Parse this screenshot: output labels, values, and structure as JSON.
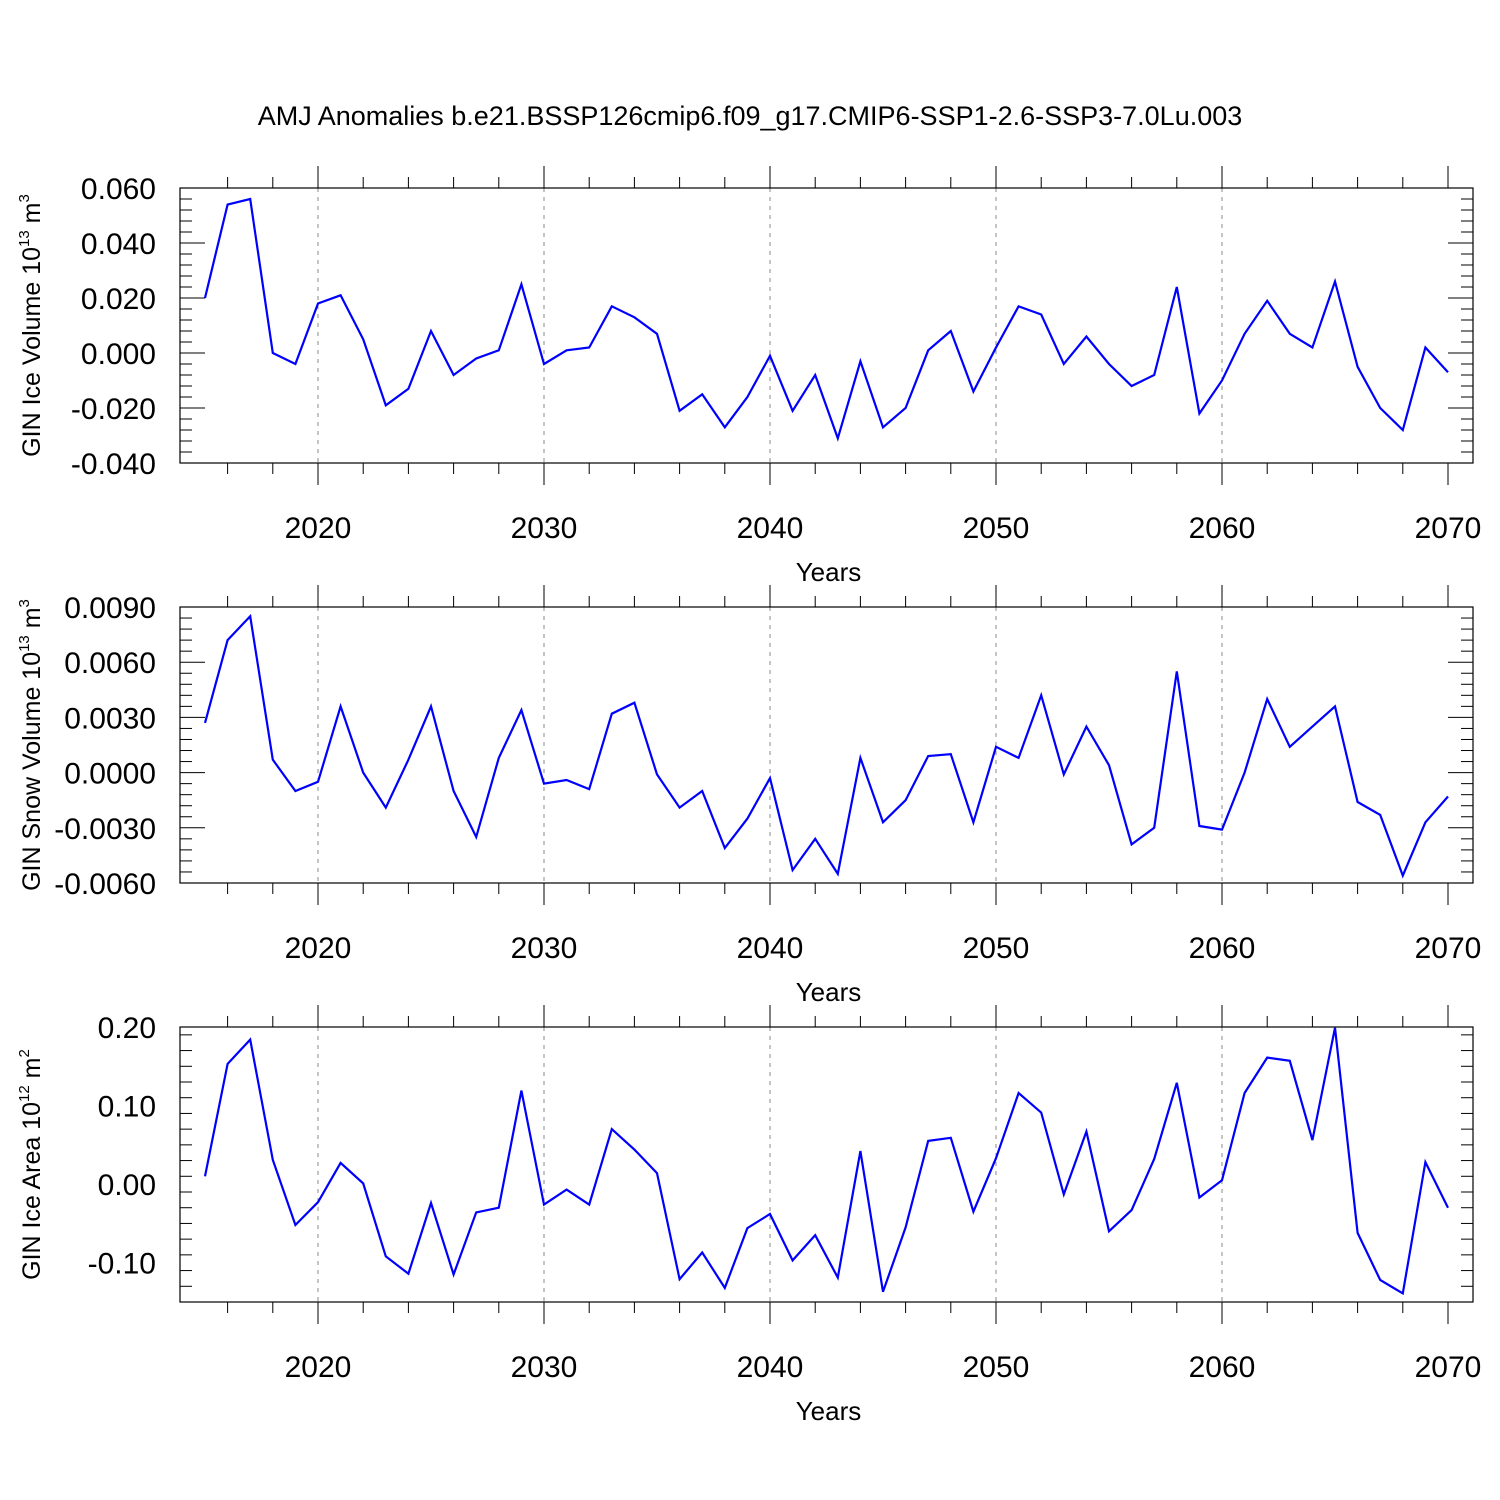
{
  "figure_title": "AMJ Anomalies b.e21.BSSP126cmip6.f09_g17.CMIP6-SSP1-2.6-SSP3-7.0Lu.003",
  "series_color": "#0000ff",
  "grid_color": "#888888",
  "chart_data": [
    {
      "type": "line",
      "title": "",
      "ylabel": {
        "text": "GIN Ice Volume 10",
        "exp": "13",
        "unit": " m",
        "unit_exp": "3"
      },
      "xlabel": "Years",
      "xlim": [
        2015,
        2070
      ],
      "ylim": [
        -0.04,
        0.06
      ],
      "yticks": [
        -0.04,
        -0.02,
        0.0,
        0.02,
        0.04,
        0.06
      ],
      "ytick_labels": [
        "-0.040",
        "-0.020",
        "0.000",
        "0.020",
        "0.040",
        "0.060"
      ],
      "xticks": [
        2020,
        2030,
        2040,
        2050,
        2060,
        2070
      ],
      "xtick_labels": [
        "2020",
        "2030",
        "2040",
        "2050",
        "2060",
        "2070"
      ],
      "grid": "vertical dashed at major x ticks",
      "series": [
        {
          "name": "GIN Ice Volume anomaly",
          "x": [
            2015,
            2016,
            2017,
            2018,
            2019,
            2020,
            2021,
            2022,
            2023,
            2024,
            2025,
            2026,
            2027,
            2028,
            2029,
            2030,
            2031,
            2032,
            2033,
            2034,
            2035,
            2036,
            2037,
            2038,
            2039,
            2040,
            2041,
            2042,
            2043,
            2044,
            2045,
            2046,
            2047,
            2048,
            2049,
            2050,
            2051,
            2052,
            2053,
            2054,
            2055,
            2056,
            2057,
            2058,
            2059,
            2060,
            2061,
            2062,
            2063,
            2064,
            2065,
            2066,
            2067,
            2068,
            2069,
            2070
          ],
          "values": [
            0.02,
            0.054,
            0.056,
            0.0,
            -0.004,
            0.018,
            0.021,
            0.005,
            -0.019,
            -0.013,
            0.008,
            -0.008,
            -0.002,
            0.001,
            0.025,
            -0.004,
            0.001,
            0.002,
            0.017,
            0.013,
            0.007,
            -0.021,
            -0.015,
            -0.027,
            -0.016,
            -0.001,
            -0.021,
            -0.008,
            -0.031,
            -0.003,
            -0.027,
            -0.02,
            0.001,
            0.008,
            -0.014,
            0.002,
            0.017,
            0.014,
            -0.004,
            0.006,
            -0.004,
            -0.012,
            -0.008,
            0.024,
            -0.022,
            -0.01,
            0.007,
            0.019,
            0.007,
            0.002,
            0.026,
            -0.005,
            -0.02,
            -0.028,
            0.002,
            -0.007
          ]
        }
      ]
    },
    {
      "type": "line",
      "title": "",
      "ylabel": {
        "text": "GIN Snow Volume 10",
        "exp": "13",
        "unit": " m",
        "unit_exp": "3"
      },
      "xlabel": "Years",
      "xlim": [
        2015,
        2070
      ],
      "ylim": [
        -0.006,
        0.009
      ],
      "yticks": [
        -0.006,
        -0.003,
        0.0,
        0.003,
        0.006,
        0.009
      ],
      "ytick_labels": [
        "-0.0060",
        "-0.0030",
        "0.0000",
        "0.0030",
        "0.0060",
        "0.0090"
      ],
      "xticks": [
        2020,
        2030,
        2040,
        2050,
        2060,
        2070
      ],
      "xtick_labels": [
        "2020",
        "2030",
        "2040",
        "2050",
        "2060",
        "2070"
      ],
      "grid": "vertical dashed at major x ticks",
      "series": [
        {
          "name": "GIN Snow Volume anomaly",
          "x": [
            2015,
            2016,
            2017,
            2018,
            2019,
            2020,
            2021,
            2022,
            2023,
            2024,
            2025,
            2026,
            2027,
            2028,
            2029,
            2030,
            2031,
            2032,
            2033,
            2034,
            2035,
            2036,
            2037,
            2038,
            2039,
            2040,
            2041,
            2042,
            2043,
            2044,
            2045,
            2046,
            2047,
            2048,
            2049,
            2050,
            2051,
            2052,
            2053,
            2054,
            2055,
            2056,
            2057,
            2058,
            2059,
            2060,
            2061,
            2062,
            2063,
            2064,
            2065,
            2066,
            2067,
            2068,
            2069,
            2070
          ],
          "values": [
            0.0027,
            0.0072,
            0.0085,
            0.0007,
            -0.001,
            -0.0005,
            0.0036,
            0.0,
            -0.0019,
            0.0007,
            0.0036,
            -0.001,
            -0.0035,
            0.0008,
            0.0034,
            -0.0006,
            -0.0004,
            -0.0009,
            0.0032,
            0.0038,
            -0.0001,
            -0.0019,
            -0.001,
            -0.0041,
            -0.0025,
            -0.0003,
            -0.0053,
            -0.0036,
            -0.0055,
            0.0008,
            -0.0027,
            -0.0015,
            0.0009,
            0.001,
            -0.0027,
            0.0014,
            0.0008,
            0.0042,
            -0.0001,
            0.0025,
            0.0004,
            -0.0039,
            -0.003,
            0.0055,
            -0.0029,
            -0.0031,
            0.0,
            0.004,
            0.0014,
            0.0025,
            0.0036,
            -0.0016,
            -0.0023,
            -0.0056,
            -0.0027,
            -0.0013
          ]
        }
      ]
    },
    {
      "type": "line",
      "title": "",
      "ylabel": {
        "text": "GIN Ice Area 10",
        "exp": "12",
        "unit": " m",
        "unit_exp": "2"
      },
      "xlabel": "Years",
      "xlim": [
        2015,
        2070
      ],
      "ylim": [
        -0.15,
        0.2
      ],
      "yticks": [
        -0.1,
        0.0,
        0.1,
        0.2
      ],
      "ytick_labels": [
        "-0.10",
        "0.00",
        "0.10",
        "0.20"
      ],
      "xticks": [
        2020,
        2030,
        2040,
        2050,
        2060,
        2070
      ],
      "xtick_labels": [
        "2020",
        "2030",
        "2040",
        "2050",
        "2060",
        "2070"
      ],
      "grid": "vertical dashed at major x ticks",
      "series": [
        {
          "name": "GIN Ice Area anomaly",
          "x": [
            2015,
            2016,
            2017,
            2018,
            2019,
            2020,
            2021,
            2022,
            2023,
            2024,
            2025,
            2026,
            2027,
            2028,
            2029,
            2030,
            2031,
            2032,
            2033,
            2034,
            2035,
            2036,
            2037,
            2038,
            2039,
            2040,
            2041,
            2042,
            2043,
            2044,
            2045,
            2046,
            2047,
            2048,
            2049,
            2050,
            2051,
            2052,
            2053,
            2054,
            2055,
            2056,
            2057,
            2058,
            2059,
            2060,
            2061,
            2062,
            2063,
            2064,
            2065,
            2066,
            2067,
            2068,
            2069,
            2070
          ],
          "values": [
            0.01,
            0.153,
            0.184,
            0.031,
            -0.052,
            -0.023,
            0.027,
            0.001,
            -0.092,
            -0.114,
            -0.024,
            -0.115,
            -0.036,
            -0.03,
            0.119,
            -0.026,
            -0.007,
            -0.026,
            0.07,
            0.044,
            0.014,
            -0.121,
            -0.087,
            -0.132,
            -0.056,
            -0.038,
            -0.097,
            -0.065,
            -0.119,
            0.042,
            -0.137,
            -0.055,
            0.055,
            0.059,
            -0.035,
            0.033,
            0.116,
            0.091,
            -0.013,
            0.067,
            -0.06,
            -0.033,
            0.032,
            0.129,
            -0.017,
            0.005,
            0.116,
            0.161,
            0.157,
            0.056,
            0.199,
            -0.062,
            -0.122,
            -0.139,
            0.028,
            -0.03
          ]
        }
      ]
    }
  ]
}
